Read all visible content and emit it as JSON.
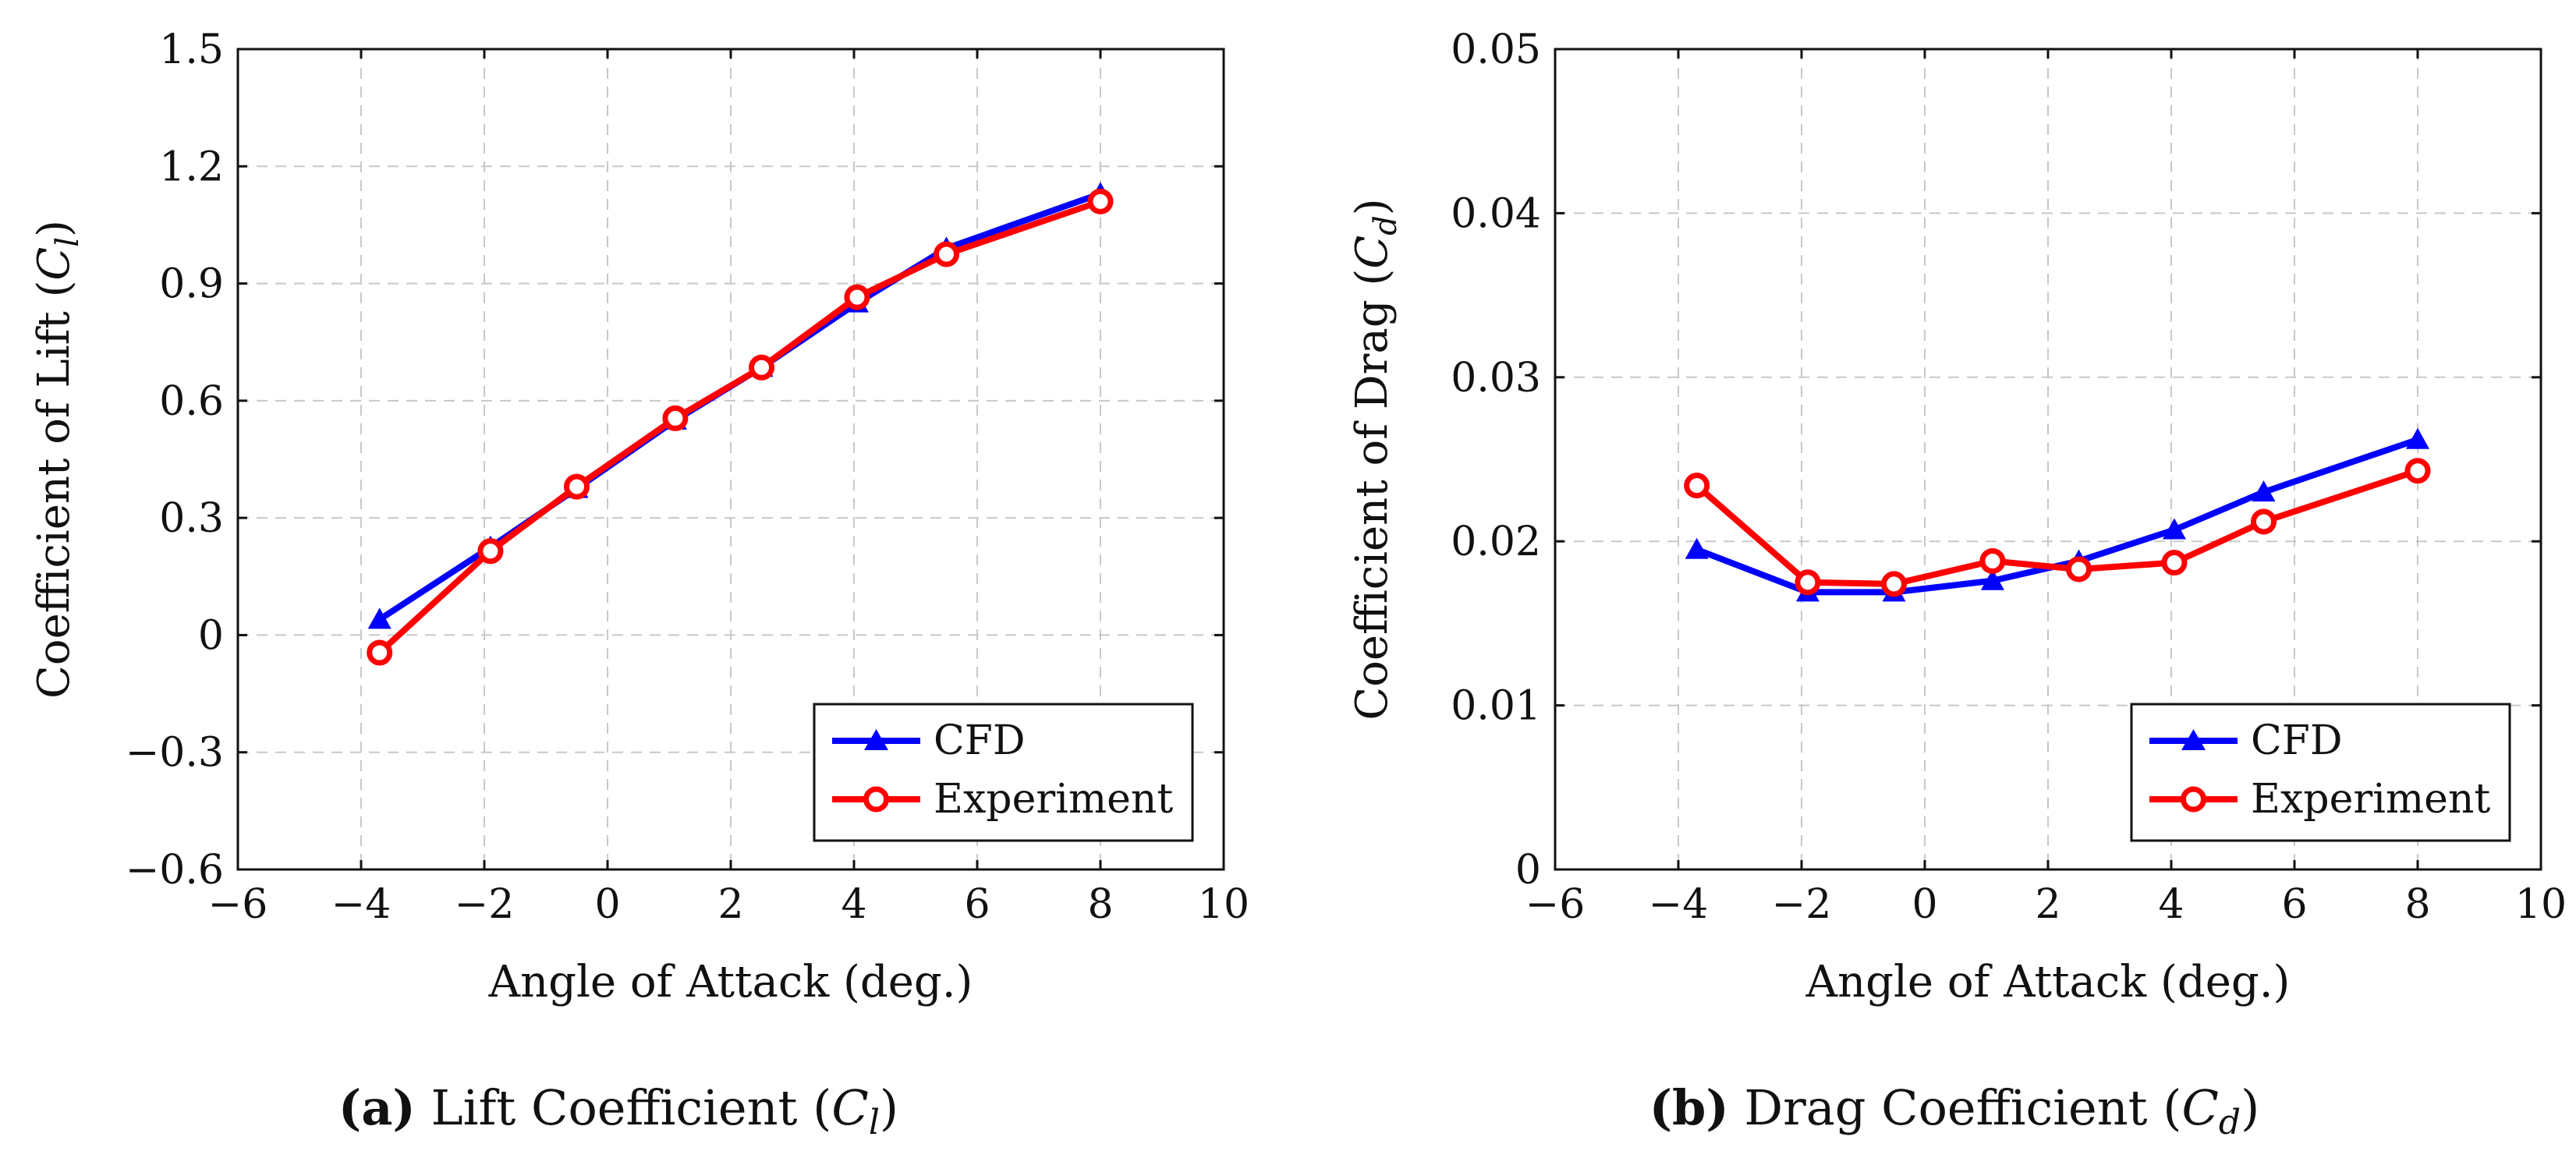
{
  "chart_data": [
    {
      "type": "line",
      "id": "lift",
      "xlabel": "Angle of Attack (deg.)",
      "ylabel_prefix": "Coefficient of Lift (",
      "ylabel_symbol": "C",
      "ylabel_subscript": "l",
      "ylabel_suffix": ")",
      "xlim": [
        -6,
        10
      ],
      "ylim": [
        -0.6,
        1.5
      ],
      "xticks": [
        -6,
        -4,
        -2,
        0,
        2,
        4,
        6,
        8,
        10
      ],
      "xtick_labels": [
        "−6",
        "−4",
        "−2",
        "0",
        "2",
        "4",
        "6",
        "8",
        "10"
      ],
      "yticks": [
        -0.6,
        -0.3,
        0,
        0.3,
        0.6,
        0.9,
        1.2,
        1.5
      ],
      "ytick_labels": [
        "−0.6",
        "−0.3",
        "0",
        "0.3",
        "0.6",
        "0.9",
        "1.2",
        "1.5"
      ],
      "grid": true,
      "legend_position": "bottom-right",
      "series": [
        {
          "name": "CFD",
          "color": "#0000ff",
          "marker": "triangle",
          "x": [
            -3.7,
            -1.9,
            -0.5,
            1.1,
            2.5,
            4.05,
            5.5,
            8.0
          ],
          "y": [
            0.04,
            0.225,
            0.375,
            0.55,
            0.685,
            0.85,
            0.99,
            1.13
          ]
        },
        {
          "name": "Experiment",
          "color": "#ff0000",
          "marker": "circle",
          "x": [
            -3.7,
            -1.9,
            -0.5,
            1.1,
            2.5,
            4.05,
            5.5,
            8.0
          ],
          "y": [
            -0.045,
            0.215,
            0.38,
            0.555,
            0.685,
            0.865,
            0.975,
            1.11
          ]
        }
      ],
      "caption_label": "(a)",
      "caption_text": " Lift Coefficient (",
      "caption_symbol": "C",
      "caption_subscript": "l",
      "caption_suffix": ")"
    },
    {
      "type": "line",
      "id": "drag",
      "xlabel": "Angle of Attack (deg.)",
      "ylabel_prefix": "Coefficient of Drag (",
      "ylabel_symbol": "C",
      "ylabel_subscript": "d",
      "ylabel_suffix": ")",
      "xlim": [
        -6,
        10
      ],
      "ylim": [
        0,
        0.05
      ],
      "xticks": [
        -6,
        -4,
        -2,
        0,
        2,
        4,
        6,
        8,
        10
      ],
      "xtick_labels": [
        "−6",
        "−4",
        "−2",
        "0",
        "2",
        "4",
        "6",
        "8",
        "10"
      ],
      "yticks": [
        0,
        0.01,
        0.02,
        0.03,
        0.04,
        0.05
      ],
      "ytick_labels": [
        "0",
        "0.01",
        "0.02",
        "0.03",
        "0.04",
        "0.05"
      ],
      "grid": true,
      "legend_position": "bottom-right",
      "series": [
        {
          "name": "CFD",
          "color": "#0000ff",
          "marker": "triangle",
          "x": [
            -3.7,
            -1.9,
            -0.5,
            1.1,
            2.5,
            4.05,
            5.5,
            8.0
          ],
          "y": [
            0.0195,
            0.0169,
            0.0169,
            0.0176,
            0.0188,
            0.0207,
            0.023,
            0.0262
          ]
        },
        {
          "name": "Experiment",
          "color": "#ff0000",
          "marker": "circle",
          "x": [
            -3.7,
            -1.9,
            -0.5,
            1.1,
            2.5,
            4.05,
            5.5,
            8.0
          ],
          "y": [
            0.0234,
            0.0175,
            0.0174,
            0.0188,
            0.0183,
            0.0187,
            0.0212,
            0.0243
          ]
        }
      ],
      "caption_label": "(b)",
      "caption_text": " Drag Coefficient (",
      "caption_symbol": "C",
      "caption_subscript": "d",
      "caption_suffix": ")"
    }
  ]
}
